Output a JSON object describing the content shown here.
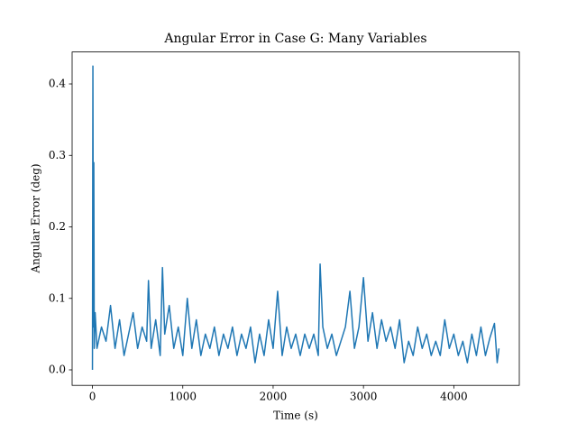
{
  "chart_data": {
    "type": "line",
    "title": "Angular Error in Case G: Many Variables",
    "xlabel": "Time (s)",
    "ylabel": "Angular Error (deg)",
    "xlim": [
      -225,
      4725
    ],
    "ylim": [
      -0.0217,
      0.4447
    ],
    "xticks": [
      0,
      1000,
      2000,
      3000,
      4000
    ],
    "yticks": [
      {
        "value": 0,
        "label": "0.0"
      },
      0.1,
      0.2,
      0.3,
      0.4
    ],
    "grid": false,
    "x": [
      0,
      5,
      10,
      15,
      20,
      30,
      50,
      100,
      150,
      200,
      250,
      300,
      350,
      400,
      450,
      500,
      550,
      600,
      620,
      650,
      700,
      750,
      775,
      800,
      850,
      900,
      950,
      1000,
      1050,
      1100,
      1150,
      1200,
      1250,
      1300,
      1350,
      1400,
      1450,
      1500,
      1550,
      1600,
      1650,
      1700,
      1750,
      1800,
      1850,
      1900,
      1950,
      2000,
      2050,
      2100,
      2150,
      2200,
      2250,
      2300,
      2350,
      2400,
      2450,
      2500,
      2520,
      2550,
      2600,
      2650,
      2700,
      2750,
      2800,
      2850,
      2900,
      2950,
      3000,
      3050,
      3100,
      3150,
      3200,
      3250,
      3300,
      3350,
      3400,
      3450,
      3500,
      3550,
      3600,
      3650,
      3700,
      3750,
      3800,
      3850,
      3900,
      3950,
      4000,
      4050,
      4100,
      4150,
      4200,
      4250,
      4300,
      4350,
      4400,
      4450,
      4480,
      4500
    ],
    "series": [
      {
        "name": "Angular Error",
        "color": "#1f77b4",
        "values": [
          0.0,
          0.425,
          0.06,
          0.29,
          0.03,
          0.08,
          0.03,
          0.06,
          0.04,
          0.09,
          0.03,
          0.07,
          0.02,
          0.05,
          0.08,
          0.03,
          0.06,
          0.04,
          0.125,
          0.03,
          0.07,
          0.02,
          0.143,
          0.05,
          0.09,
          0.03,
          0.06,
          0.02,
          0.1,
          0.03,
          0.07,
          0.02,
          0.05,
          0.03,
          0.06,
          0.02,
          0.05,
          0.03,
          0.06,
          0.02,
          0.05,
          0.03,
          0.06,
          0.01,
          0.05,
          0.02,
          0.07,
          0.03,
          0.11,
          0.02,
          0.06,
          0.03,
          0.05,
          0.02,
          0.05,
          0.03,
          0.05,
          0.02,
          0.148,
          0.06,
          0.03,
          0.05,
          0.02,
          0.04,
          0.06,
          0.11,
          0.03,
          0.06,
          0.129,
          0.04,
          0.08,
          0.03,
          0.07,
          0.04,
          0.06,
          0.03,
          0.07,
          0.01,
          0.04,
          0.02,
          0.06,
          0.03,
          0.05,
          0.02,
          0.04,
          0.02,
          0.07,
          0.03,
          0.05,
          0.02,
          0.04,
          0.01,
          0.05,
          0.02,
          0.06,
          0.02,
          0.045,
          0.065,
          0.01,
          0.03
        ]
      }
    ]
  }
}
